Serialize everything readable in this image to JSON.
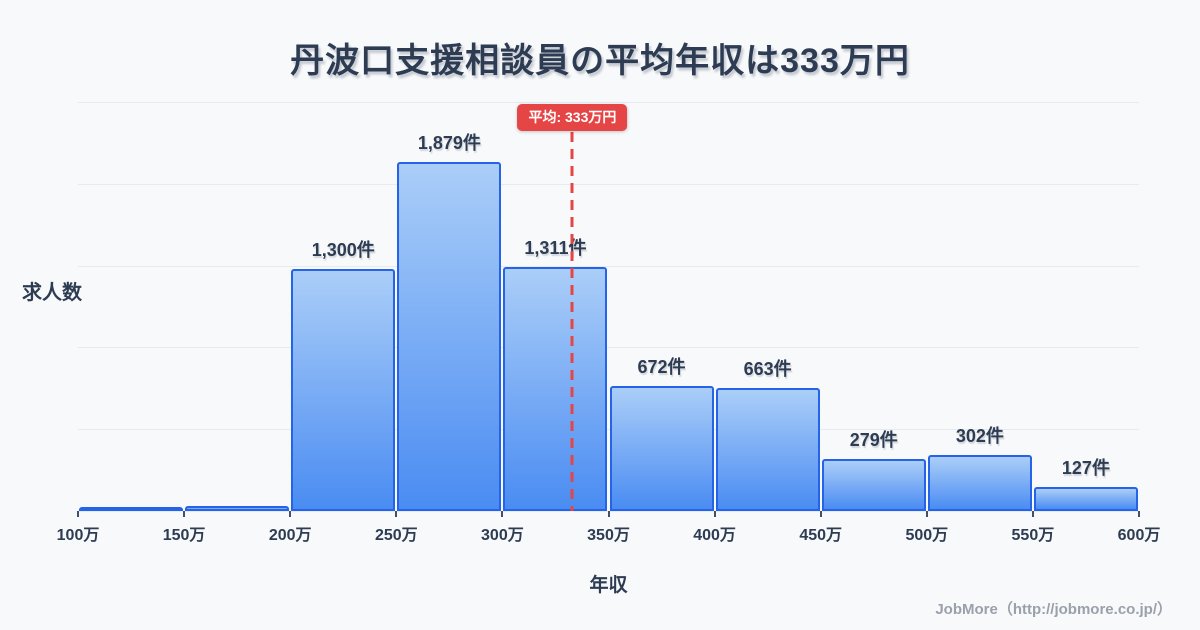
{
  "page": {
    "footer": "JobMore（http://jobmore.co.jp/）"
  },
  "colors": {
    "background": "#f8f9fb",
    "bar_fill_top": "#abcef8",
    "bar_fill_bottom": "#4a8cf2",
    "bar_border": "#2563e8",
    "grid_line": "#e7eaf0",
    "text_dark": "#2d3c52",
    "average_red": "#e64545",
    "footer_gray": "#9aa1ab"
  },
  "chart_data": {
    "type": "bar",
    "title": "丹波口支援相談員の平均年収は333万円",
    "xlabel": "年収",
    "ylabel": "求人数",
    "categories": [
      "100万-150万",
      "150万-200万",
      "200万-250万",
      "250万-300万",
      "300万-350万",
      "350万-400万",
      "400万-450万",
      "450万-500万",
      "500万-550万",
      "550万-600万"
    ],
    "values": [
      10,
      25,
      1300,
      1879,
      1311,
      672,
      663,
      279,
      302,
      127
    ],
    "data_labels": [
      "",
      "",
      "1,300件",
      "1,879件",
      "1,311件",
      "672件",
      "663件",
      "279件",
      "302件",
      "127件"
    ],
    "x_tick_labels": [
      "100万",
      "150万",
      "200万",
      "250万",
      "300万",
      "350万",
      "400万",
      "450万",
      "500万",
      "550万",
      "600万"
    ],
    "x_range": [
      100,
      600
    ],
    "ylim": [
      0,
      2200
    ],
    "grid": true,
    "grid_divisions": 5,
    "legend": false,
    "average": {
      "value": 333,
      "label": "平均: 333万円"
    }
  }
}
